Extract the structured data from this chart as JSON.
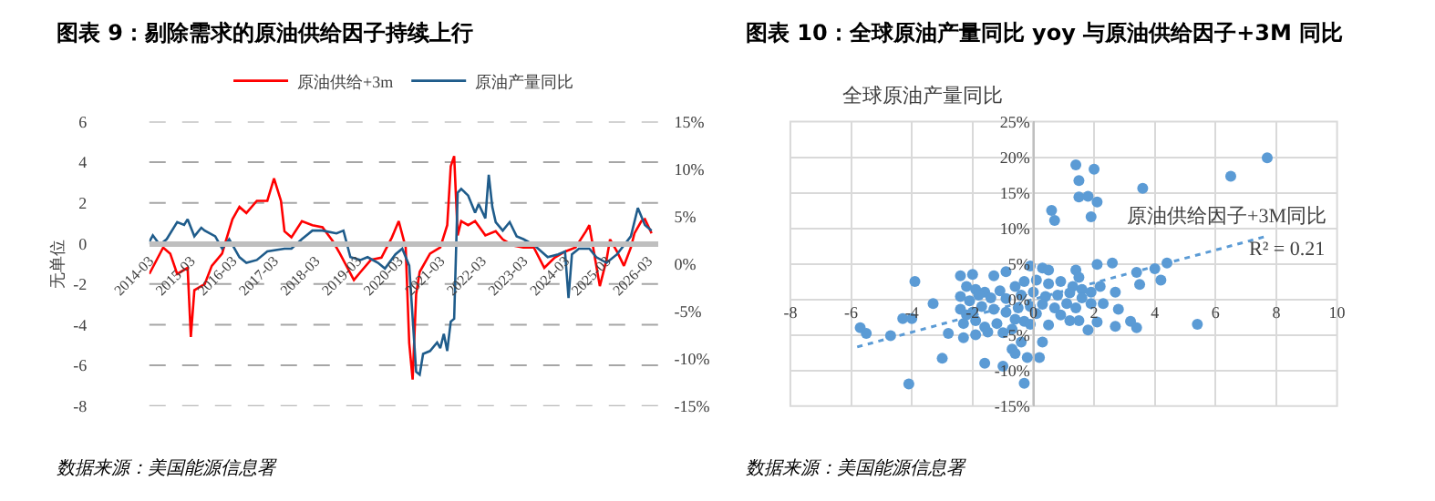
{
  "chart_data": [
    {
      "type": "line",
      "title": "图表 9：剔除需求的原油供给因子持续上行",
      "ylabel": "无单位",
      "xlim": [
        "2014-03",
        "2026-06"
      ],
      "xticks": [
        "2014-03",
        "2015-03",
        "2016-03",
        "2017-03",
        "2018-03",
        "2019-03",
        "2020-03",
        "2021-03",
        "2022-03",
        "2023-03",
        "2024-03",
        "2025-03",
        "2026-03"
      ],
      "ylim": [
        -8,
        6
      ],
      "yticks": [
        -8,
        -6,
        -4,
        -2,
        0,
        2,
        4,
        6
      ],
      "y2lim": [
        -15,
        15
      ],
      "y2ticks": [
        {
          "value": -15,
          "label": "-15%"
        },
        {
          "value": -10,
          "label": "-10%"
        },
        {
          "value": -5,
          "label": "-5%"
        },
        {
          "value": 0,
          "label": "0%"
        },
        {
          "value": 5,
          "label": "5%"
        },
        {
          "value": 10,
          "label": "10%"
        },
        {
          "value": 15,
          "label": "15%"
        }
      ],
      "grid": "y",
      "legend": "top",
      "marker": "none",
      "annotations": [
        "数据来源：美国能源信息署"
      ],
      "series": [
        {
          "name": "原油供给+3m",
          "color": "#ff0000",
          "x": [
            "2014-03",
            "2014-07",
            "2014-09",
            "2014-11",
            "2015-02",
            "2015-03",
            "2015-04",
            "2015-07",
            "2015-09",
            "2015-12",
            "2016-01",
            "2016-03",
            "2016-05",
            "2016-07",
            "2016-10",
            "2017-01",
            "2017-03",
            "2017-05",
            "2017-06",
            "2017-08",
            "2017-11",
            "2018-02",
            "2018-05",
            "2018-08",
            "2018-10",
            "2019-02",
            "2019-04",
            "2019-07",
            "2019-10",
            "2020-01",
            "2020-03",
            "2020-05",
            "2020-06",
            "2020-07",
            "2020-08",
            "2020-09",
            "2020-12",
            "2021-03",
            "2021-05",
            "2021-06",
            "2021-07",
            "2021-08",
            "2021-09",
            "2021-11",
            "2022-01",
            "2022-04",
            "2022-07",
            "2022-09",
            "2022-12",
            "2023-03",
            "2023-06",
            "2023-09",
            "2023-12",
            "2024-03",
            "2024-06",
            "2024-09",
            "2024-10",
            "2024-12",
            "2025-01",
            "2025-03",
            "2025-04",
            "2025-06",
            "2025-08",
            "2025-10",
            "2025-11",
            "2026-01",
            "2026-02",
            "2026-04"
          ],
          "values": [
            -1.5,
            -0.2,
            -0.5,
            -1.5,
            -1.2,
            -4.6,
            -2.3,
            -2.0,
            -1.1,
            -0.5,
            0.1,
            1.2,
            1.8,
            1.5,
            2.1,
            2.1,
            3.2,
            2.1,
            0.6,
            0.3,
            1.1,
            0.9,
            0.8,
            0.1,
            -0.5,
            -1.8,
            -1.4,
            -0.8,
            -0.7,
            0.3,
            1.1,
            -0.2,
            -4.9,
            -6.7,
            -2.5,
            -1.4,
            -0.5,
            -0.2,
            0.9,
            3.8,
            4.3,
            0.4,
            1.1,
            0.9,
            1.1,
            0.4,
            0.6,
            0.2,
            -0.1,
            -0.2,
            -0.2,
            -1.2,
            -0.7,
            -0.4,
            -0.2,
            0.6,
            0.9,
            -1.1,
            -2.1,
            -0.8,
            0.2,
            -0.4,
            -1.1,
            -0.2,
            0.5,
            1.1,
            1.2,
            0.5
          ]
        },
        {
          "name": "原油产量同比",
          "color": "#1f5c8b",
          "axis": "y2",
          "x": [
            "2014-03",
            "2014-04",
            "2014-06",
            "2014-08",
            "2014-11",
            "2015-01",
            "2015-02",
            "2015-04",
            "2015-06",
            "2015-07",
            "2015-10",
            "2015-12",
            "2016-02",
            "2016-05",
            "2016-07",
            "2016-10",
            "2017-01",
            "2017-06",
            "2017-08",
            "2017-11",
            "2018-02",
            "2018-05",
            "2018-09",
            "2018-11",
            "2019-01",
            "2019-04",
            "2019-06",
            "2019-09",
            "2019-11",
            "2020-02",
            "2020-04",
            "2020-06",
            "2020-08",
            "2020-09",
            "2020-10",
            "2020-12",
            "2021-02",
            "2021-03",
            "2021-04",
            "2021-05",
            "2021-06",
            "2021-07",
            "2021-08",
            "2021-09",
            "2021-11",
            "2022-01",
            "2022-02",
            "2022-04",
            "2022-05",
            "2022-06",
            "2022-07",
            "2022-09",
            "2022-11",
            "2023-01",
            "2023-03",
            "2023-06",
            "2023-10",
            "2024-01",
            "2024-03",
            "2024-04",
            "2024-05",
            "2024-07",
            "2024-10",
            "2024-12",
            "2025-03",
            "2025-06",
            "2025-10",
            "2025-12",
            "2026-02",
            "2026-04"
          ],
          "values": [
            2.3,
            3.0,
            2.0,
            2.6,
            4.4,
            4.1,
            4.7,
            2.9,
            3.8,
            3.5,
            2.9,
            1.6,
            2.6,
            0.7,
            0.1,
            0.4,
            1.3,
            1.6,
            1.6,
            2.6,
            3.5,
            3.5,
            3.2,
            3.5,
            0.7,
            0.4,
            0.7,
            0.1,
            -0.5,
            1.0,
            1.6,
            -0.2,
            -11.4,
            -11.7,
            -9.5,
            -9.2,
            -8.3,
            -8.9,
            -7.4,
            -9.2,
            -6.1,
            -5.8,
            7.5,
            7.9,
            7.2,
            5.4,
            6.3,
            4.8,
            9.4,
            6.0,
            4.4,
            3.5,
            4.4,
            2.9,
            2.6,
            2.0,
            0.7,
            1.0,
            1.3,
            -3.6,
            1.0,
            1.6,
            1.6,
            0.7,
            0.1,
            1.0,
            2.9,
            5.9,
            4.1,
            3.5
          ]
        }
      ]
    },
    {
      "type": "scatter",
      "title": "图表 10：全球原油产量同比 yoy 与原油供给因子+3M 同比",
      "ylabel": "全球原油产量同比",
      "xlim": [
        -8,
        10
      ],
      "xticks": [
        -8,
        -6,
        -4,
        -2,
        0,
        2,
        4,
        6,
        8,
        10
      ],
      "ylim": [
        -15,
        25
      ],
      "yticks": [
        {
          "value": -15,
          "label": "-15%"
        },
        {
          "value": -10,
          "label": "-10%"
        },
        {
          "value": -5,
          "label": "-5%"
        },
        {
          "value": 0,
          "label": "0%"
        },
        {
          "value": 5,
          "label": "5%"
        },
        {
          "value": 10,
          "label": "10%"
        },
        {
          "value": 15,
          "label": "15%"
        },
        {
          "value": 20,
          "label": "20%"
        },
        {
          "value": 25,
          "label": "25%"
        }
      ],
      "grid": true,
      "legend": false,
      "annotations": [
        "原油供给因子+3M同比",
        "R² = 0.21",
        "数据来源：美国能源信息署"
      ],
      "series": [
        {
          "color": "#5b9bd5",
          "marker": "circle",
          "x": [
            7.7,
            6.5,
            3.6,
            1.4,
            2.0,
            1.5,
            1.5,
            1.8,
            2.1,
            1.9,
            0.6,
            0.7,
            -3.9,
            -5.7,
            -5.5,
            -4.7,
            -4.3,
            -4.0,
            -3.3,
            -3.0,
            -2.8,
            -4.1,
            -1.6,
            -1.0,
            -0.3,
            -0.2,
            0.2,
            0.3,
            -0.7,
            -0.6,
            -0.4,
            5.4,
            3.2,
            3.4,
            2.8,
            2.7,
            2.6,
            2.1,
            3.4,
            3.5,
            4.0,
            4.2,
            4.4,
            2.7,
            2.1,
            1.8,
            1.5,
            2.2,
            2.3,
            -2.4,
            -2.0,
            -1.3,
            -0.9,
            -0.1,
            0.3,
            0.5,
            1.4,
            1.5,
            -2.2,
            -1.9,
            -1.6,
            -1.1,
            -0.6,
            -0.3,
            0.1,
            0.5,
            0.9,
            1.3,
            1.6,
            1.9,
            -2.4,
            -2.1,
            -1.8,
            -1.4,
            -0.9,
            -0.4,
            0.0,
            0.4,
            0.8,
            1.2,
            1.6,
            1.9,
            -2.4,
            -2.0,
            -1.7,
            -1.3,
            -0.9,
            -0.5,
            -0.1,
            0.3,
            0.7,
            1.1,
            1.4,
            -2.3,
            -1.9,
            -1.6,
            -1.2,
            -0.7,
            -0.3,
            -0.1,
            0.5,
            -2.3,
            -1.9,
            -1.5,
            -1.0,
            -2.2,
            0.1,
            0.9,
            1.2,
            -0.6
          ],
          "values": [
            19.9,
            17.3,
            15.6,
            18.9,
            18.3,
            16.7,
            14.4,
            14.5,
            13.7,
            11.6,
            12.5,
            11.1,
            2.5,
            -4.0,
            -4.8,
            -5.1,
            -2.7,
            -2.7,
            -0.6,
            -8.3,
            -4.8,
            -11.9,
            -9.0,
            -9.4,
            -11.8,
            -8.2,
            -8.2,
            -6.0,
            -7.0,
            -7.6,
            -6.0,
            -3.5,
            -3.1,
            -4.0,
            -1.4,
            1.0,
            5.1,
            4.9,
            3.8,
            2.1,
            4.3,
            2.7,
            5.1,
            -3.8,
            -3.2,
            -4.3,
            -3.0,
            1.8,
            -0.6,
            3.3,
            3.5,
            3.3,
            3.9,
            4.7,
            4.4,
            4.1,
            4.1,
            3.1,
            1.8,
            1.4,
            1.0,
            1.2,
            1.8,
            2.5,
            2.7,
            2.2,
            2.5,
            1.8,
            1.4,
            1.0,
            0.4,
            -0.2,
            0.6,
            0.2,
            0.1,
            0.6,
            1.0,
            0.4,
            0.6,
            0.9,
            0.2,
            -0.6,
            -1.4,
            -1.8,
            -1.0,
            -1.4,
            -1.8,
            -1.2,
            -1.0,
            -0.7,
            -1.2,
            -0.6,
            -1.2,
            -3.4,
            -3.0,
            -3.9,
            -3.4,
            -4.2,
            -3.1,
            -3.5,
            -3.6,
            -5.4,
            -5.0,
            -4.6,
            -4.7,
            -2.2,
            -2.0,
            -2.2,
            -3.0,
            -2.8
          ]
        },
        {
          "type": "line",
          "color": "#5b9bd5",
          "line_style": "dotted",
          "marker": "none",
          "x": [
            -5.8,
            7.7
          ],
          "values": [
            -6.7,
            8.9
          ]
        }
      ]
    }
  ]
}
